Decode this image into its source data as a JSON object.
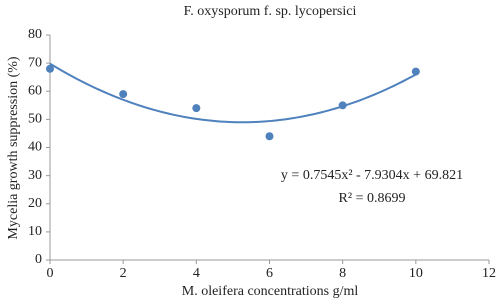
{
  "chart_data": {
    "type": "scatter",
    "title": "F. oxysporum f. sp.  lycopersici",
    "x_label": "M. oleifera concentrations g/ml",
    "y_label": "Mycelia growth suppression (%)",
    "x": [
      0,
      2,
      4,
      6,
      8,
      10
    ],
    "values": [
      68,
      59,
      54,
      44,
      55,
      67
    ],
    "color": "#4f81bd",
    "xlim": [
      0,
      12
    ],
    "xticks": [
      0,
      2,
      4,
      6,
      8,
      10,
      12
    ],
    "ylim": [
      0,
      80
    ],
    "yticks": [
      0,
      10,
      20,
      30,
      40,
      50,
      60,
      70,
      80
    ],
    "trendline": {
      "type": "polynomial",
      "order": 2,
      "equation": "y = 0.7545x² - 7.9304x + 69.821",
      "r_squared": "R² = 0.8699"
    }
  }
}
